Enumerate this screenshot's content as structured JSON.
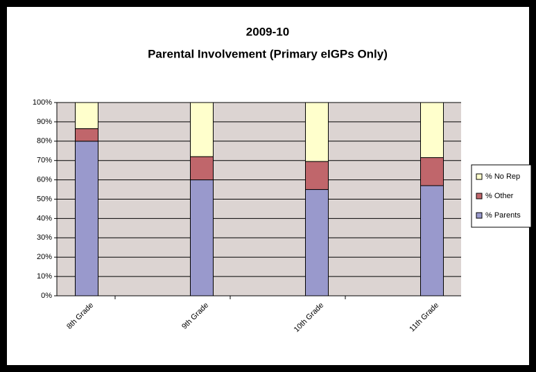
{
  "chart_data": {
    "type": "stacked_bar",
    "title": [
      "2009-10",
      "Parental Involvement  (Primary eIGPs Only)"
    ],
    "categories": [
      "8th Grade",
      "9th Grade",
      "10th Grade",
      "11th Grade"
    ],
    "series": [
      {
        "name": "% Parents",
        "color": "#9999cc",
        "values": [
          80,
          60,
          55,
          57
        ]
      },
      {
        "name": "% Other",
        "color": "#c0666b",
        "values": [
          6.5,
          12,
          14.5,
          14.5
        ]
      },
      {
        "name": "% No Rep",
        "color": "#ffffcc",
        "values": [
          13.5,
          28,
          30.5,
          28.5
        ]
      }
    ],
    "ylim": [
      0,
      100
    ],
    "yticks": [
      {
        "value": 0,
        "label": "0%"
      },
      {
        "value": 10,
        "label": "10%"
      },
      {
        "value": 20,
        "label": "20%"
      },
      {
        "value": 30,
        "label": "30%"
      },
      {
        "value": 40,
        "label": "40%"
      },
      {
        "value": 50,
        "label": "50%"
      },
      {
        "value": 60,
        "label": "60%"
      },
      {
        "value": 70,
        "label": "70%"
      },
      {
        "value": 80,
        "label": "80%"
      },
      {
        "value": 90,
        "label": "90%"
      },
      {
        "value": 100,
        "label": "100%"
      }
    ],
    "grid": true,
    "legend": "right"
  }
}
